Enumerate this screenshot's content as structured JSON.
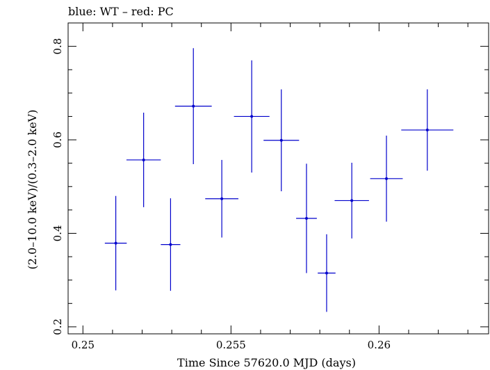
{
  "chart_data": {
    "type": "scatter",
    "title": "blue: WT – red: PC",
    "xlabel": "Time Since 57620.0 MJD (days)",
    "ylabel": "(2.0–10.0 keV)/(0.3–2.0 keV)",
    "xlim": [
      0.2495,
      0.2637
    ],
    "ylim": [
      0.185,
      0.85
    ],
    "xticks": [
      0.25,
      0.255,
      0.26
    ],
    "xtick_labels": [
      "0.25",
      "0.255",
      "0.26"
    ],
    "yticks": [
      0.2,
      0.4,
      0.6,
      0.8
    ],
    "ytick_labels": [
      "0.2",
      "0.4",
      "0.6",
      "0.8"
    ],
    "grid": false,
    "series": [
      {
        "color": "#0000cc",
        "points": [
          {
            "x": 0.25111,
            "y": 0.379,
            "xerr": 0.00037,
            "yerr_low": 0.101,
            "yerr_high": 0.101
          },
          {
            "x": 0.25205,
            "y": 0.557,
            "xerr": 0.00058,
            "yerr_low": 0.101,
            "yerr_high": 0.101
          },
          {
            "x": 0.25296,
            "y": 0.376,
            "xerr": 0.00033,
            "yerr_low": 0.099,
            "yerr_high": 0.099
          },
          {
            "x": 0.25373,
            "y": 0.672,
            "xerr": 0.00062,
            "yerr_low": 0.124,
            "yerr_high": 0.124
          },
          {
            "x": 0.25469,
            "y": 0.474,
            "xerr": 0.00056,
            "yerr_low": 0.083,
            "yerr_high": 0.083
          },
          {
            "x": 0.2557,
            "y": 0.65,
            "xerr": 0.0006,
            "yerr_low": 0.12,
            "yerr_high": 0.12
          },
          {
            "x": 0.2567,
            "y": 0.599,
            "xerr": 0.0006,
            "yerr_low": 0.109,
            "yerr_high": 0.109
          },
          {
            "x": 0.25755,
            "y": 0.432,
            "xerr": 0.00035,
            "yerr_low": 0.117,
            "yerr_high": 0.117
          },
          {
            "x": 0.25823,
            "y": 0.315,
            "xerr": 0.0003,
            "yerr_low": 0.083,
            "yerr_high": 0.083
          },
          {
            "x": 0.25908,
            "y": 0.47,
            "xerr": 0.00058,
            "yerr_low": 0.081,
            "yerr_high": 0.081
          },
          {
            "x": 0.26025,
            "y": 0.517,
            "xerr": 0.00055,
            "yerr_low": 0.092,
            "yerr_high": 0.092
          },
          {
            "x": 0.26163,
            "y": 0.621,
            "xerr": 0.00088,
            "yerr_low": 0.087,
            "yerr_high": 0.087
          }
        ]
      }
    ]
  }
}
